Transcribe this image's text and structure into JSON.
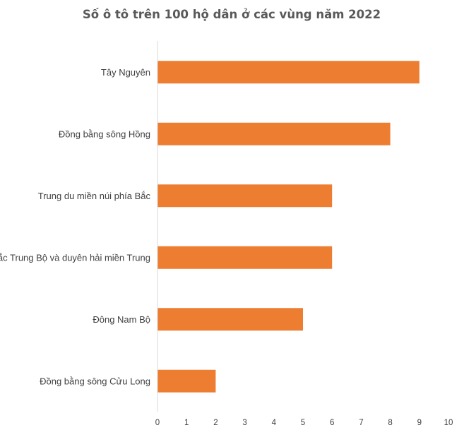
{
  "chart_data": {
    "type": "bar",
    "orientation": "horizontal",
    "title": "Số ô tô trên 100 hộ dân ở các vùng năm 2022",
    "categories": [
      "Tây Nguyên",
      "Đồng bằng sông Hồng",
      "Trung du miền núi phía Bắc",
      "Bắc Trung Bộ và duyên hải miền Trung",
      "Đông Nam Bộ",
      "Đồng bằng sông Cửu Long"
    ],
    "values": [
      9,
      8,
      6,
      6,
      5,
      2
    ],
    "xlim": [
      0,
      10
    ],
    "xticks": [
      "0",
      "1",
      "2",
      "3",
      "4",
      "5",
      "6",
      "7",
      "8",
      "9",
      "10"
    ],
    "xlabel": "",
    "ylabel": "",
    "grid": false,
    "bar_color": "#ED7D31",
    "axis_color": "#D9D9D9"
  }
}
